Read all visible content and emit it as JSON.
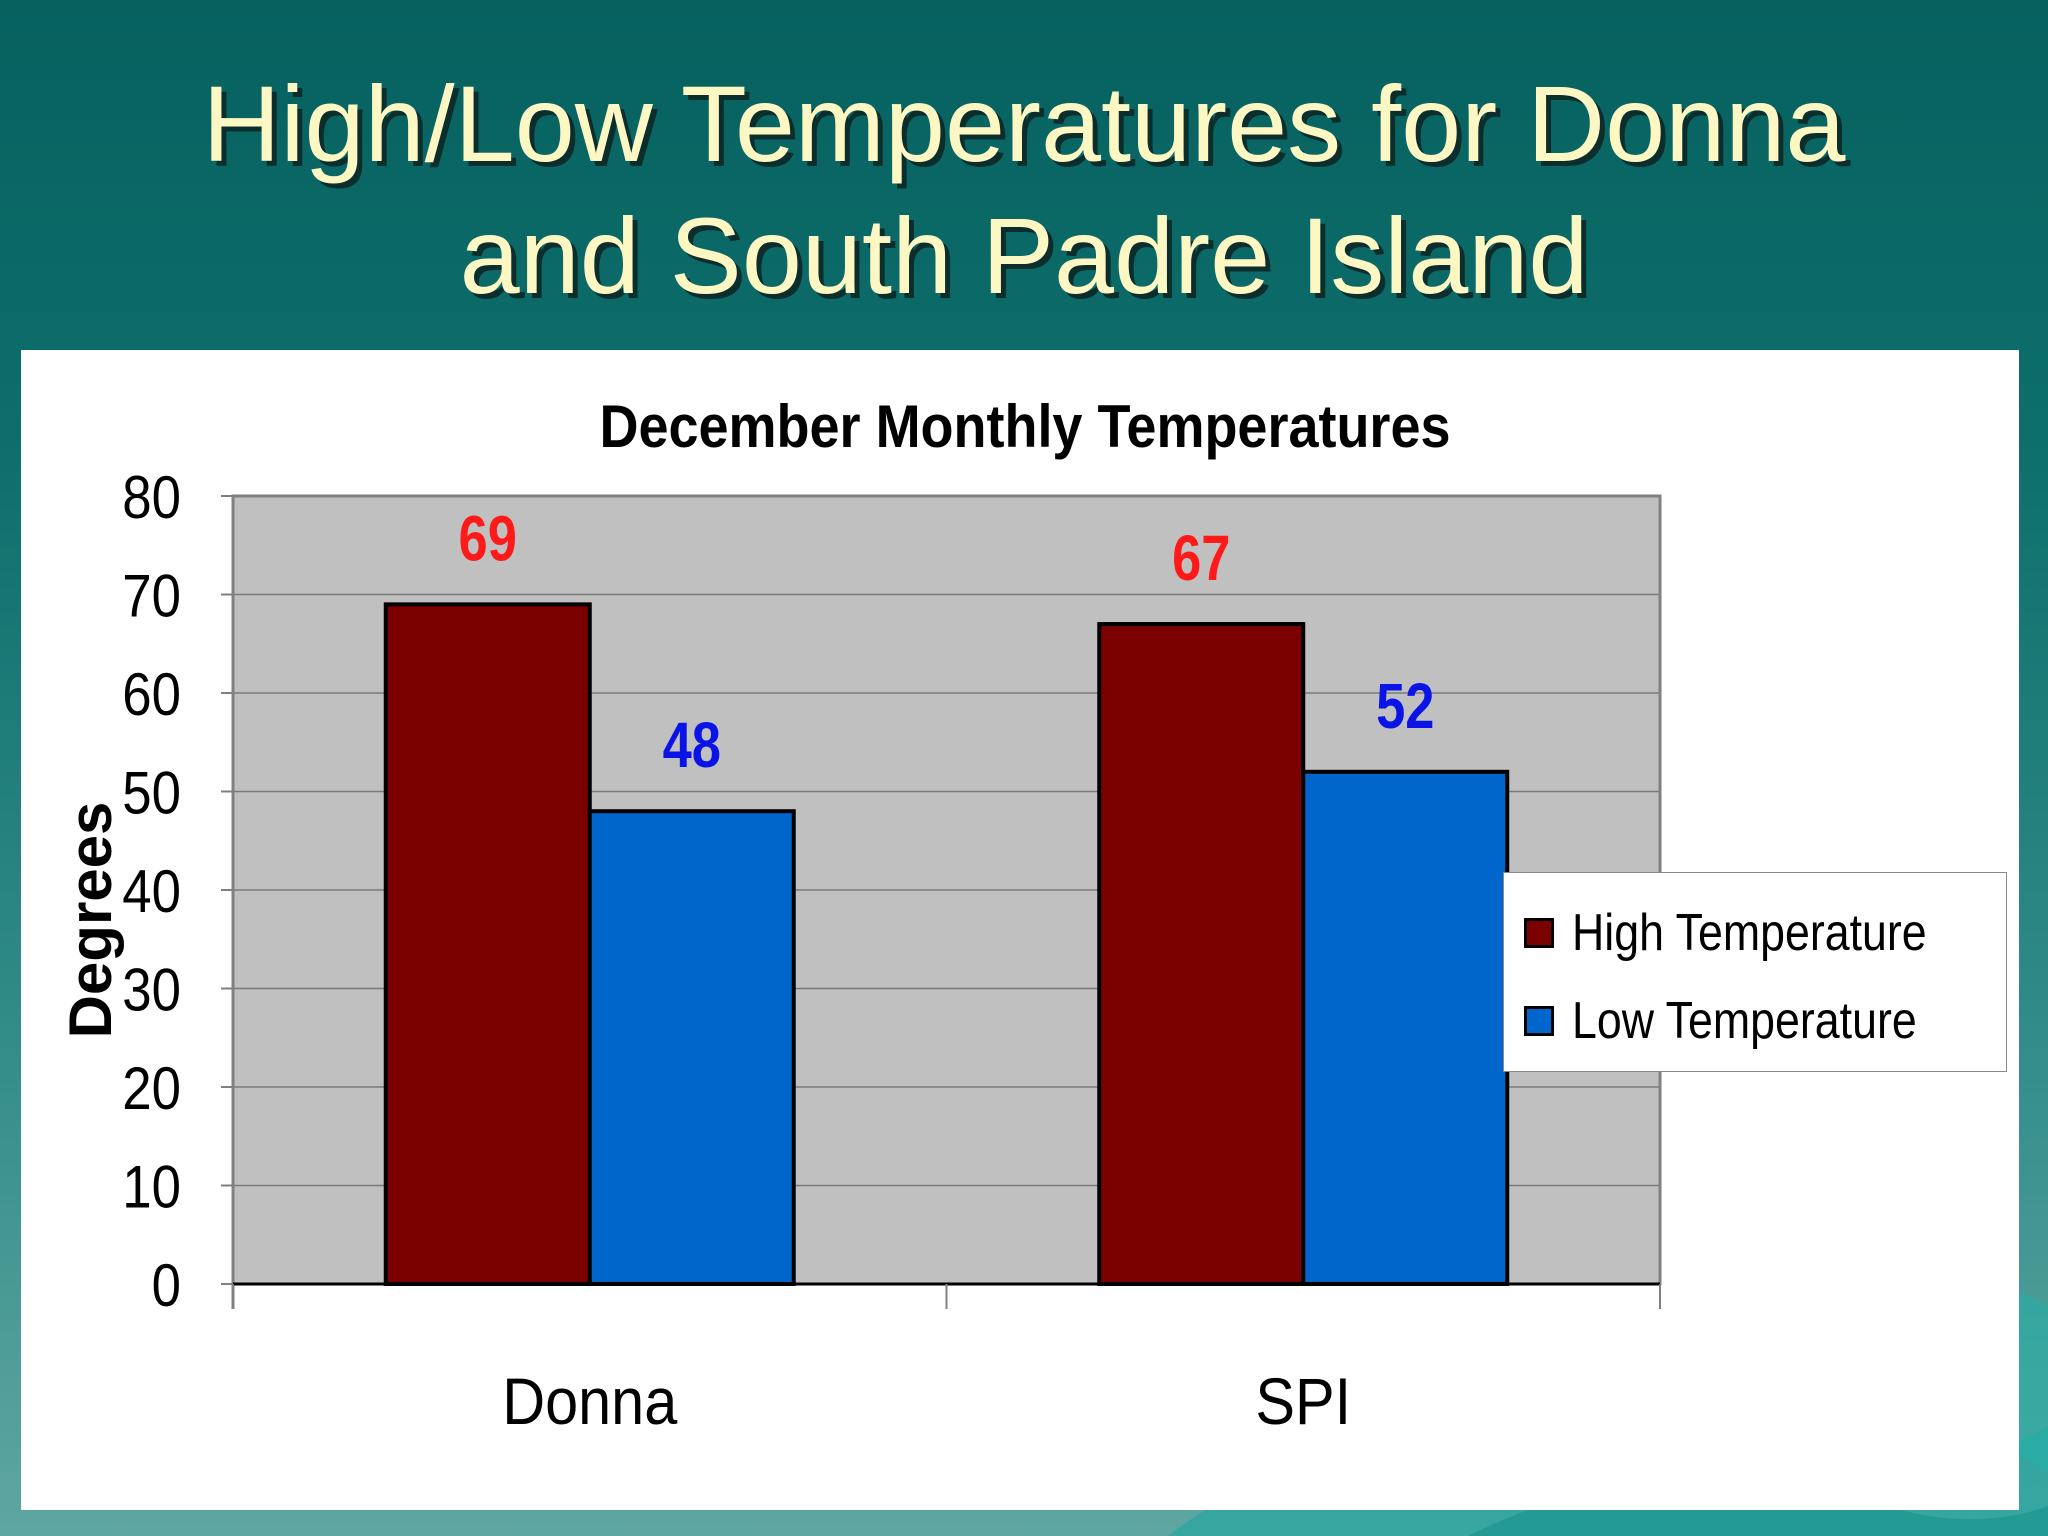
{
  "slide": {
    "title_line1": "High/Low Temperatures for Donna",
    "title_line2": "and South Padre Island",
    "colors": {
      "background": "#0e6f6c",
      "title": "#fdf7c4",
      "panel": "#ffffff",
      "plot_area": "#c0c0c0"
    }
  },
  "chart_data": {
    "type": "bar",
    "title": "December Monthly Temperatures",
    "ylabel": "Degrees",
    "xlabel": "",
    "categories": [
      "Donna",
      "SPI"
    ],
    "series": [
      {
        "name": "High Temperature",
        "values": [
          69,
          67
        ],
        "color": "#7b0000",
        "label_color": "#ff1a1a"
      },
      {
        "name": "Low Temperature",
        "values": [
          48,
          52
        ],
        "color": "#0066cc",
        "label_color": "#0a14e6"
      }
    ],
    "ylim": [
      0,
      80
    ],
    "yticks": [
      0,
      10,
      20,
      30,
      40,
      50,
      60,
      70,
      80
    ],
    "grid": true,
    "legend_position": "right"
  }
}
